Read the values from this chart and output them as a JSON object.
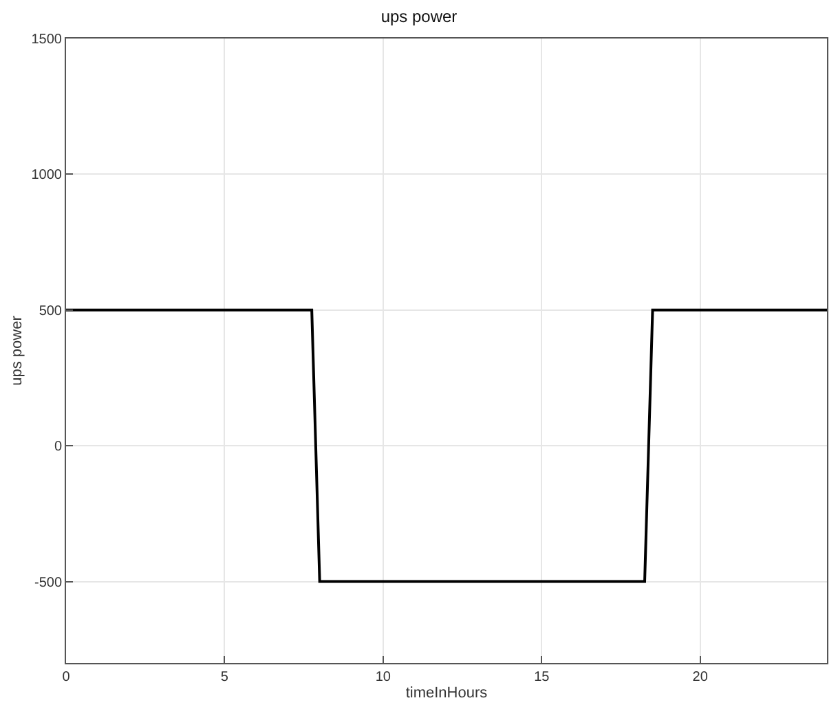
{
  "chart_data": {
    "type": "line",
    "title": "ups power",
    "xlabel": "timeInHours",
    "ylabel": "ups power",
    "x": [
      0,
      7.75,
      8,
      18.25,
      18.5,
      24
    ],
    "series": [
      {
        "color": "#000000",
        "values": [
          500,
          500,
          -500,
          -500,
          500,
          500
        ]
      }
    ],
    "xlim": [
      0,
      24
    ],
    "xticks": [
      0,
      5,
      10,
      15,
      20
    ],
    "ylim": [
      -800,
      1500
    ],
    "yticks": [
      -500,
      0,
      500,
      1000,
      1500
    ],
    "grid": true,
    "marker": "none",
    "line_style": "solid"
  }
}
